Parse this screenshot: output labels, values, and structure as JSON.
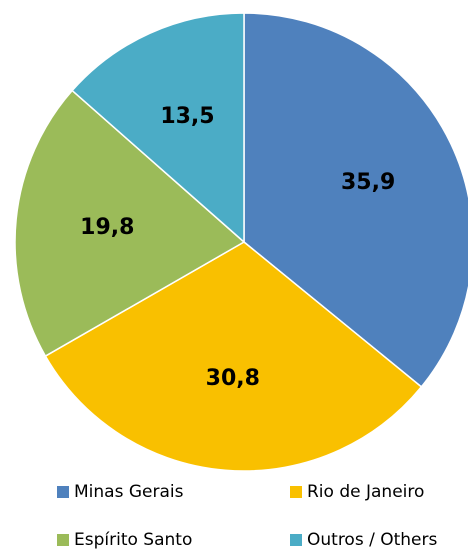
{
  "chart_data": {
    "type": "pie",
    "categories": [
      "Minas Gerais",
      "Rio de Janeiro",
      "Espírito Santo",
      "Outros / Others"
    ],
    "values": [
      35.9,
      30.8,
      19.8,
      13.5
    ],
    "value_labels": [
      "35,9",
      "30,8",
      "19,8",
      "13,5"
    ],
    "colors": [
      "#4f81bd",
      "#f9c000",
      "#9bbb59",
      "#4bacc6"
    ],
    "legend": "bottom"
  }
}
